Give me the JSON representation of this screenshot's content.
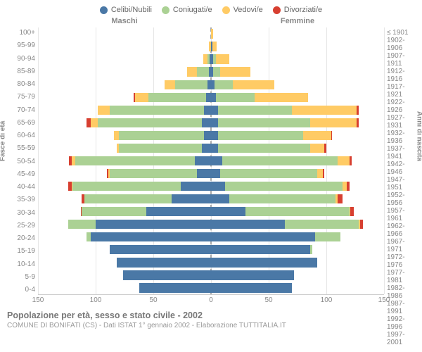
{
  "legend": [
    {
      "label": "Celibi/Nubili",
      "color": "#4a78a6"
    },
    {
      "label": "Coniugati/e",
      "color": "#abd194"
    },
    {
      "label": "Vedovi/e",
      "color": "#ffcb65"
    },
    {
      "label": "Divorziati/e",
      "color": "#d73f30"
    }
  ],
  "headers": {
    "left": "Maschi",
    "right": "Femmine"
  },
  "axis_titles": {
    "left": "Fasce di età",
    "right": "Anni di nascita"
  },
  "footer": {
    "title": "Popolazione per età, sesso e stato civile - 2002",
    "sub": "COMUNE DI BONIFATI (CS) - Dati ISTAT 1° gennaio 2002 - Elaborazione TUTTITALIA.IT"
  },
  "chart": {
    "xmax": 150,
    "xticks": [
      150,
      100,
      50,
      0,
      50,
      100,
      150
    ],
    "colors": {
      "single": "#4a78a6",
      "married": "#abd194",
      "widowed": "#ffcb65",
      "divorced": "#d73f30",
      "grid": "#e6e6e6",
      "center": "#aaaaaa"
    },
    "rows": [
      {
        "age": "100+",
        "birth": "≤ 1901",
        "m": {
          "s": 0,
          "m": 0,
          "w": 0,
          "d": 0
        },
        "f": {
          "s": 0,
          "m": 0,
          "w": 2,
          "d": 0
        }
      },
      {
        "age": "95-99",
        "birth": "1902-1906",
        "m": {
          "s": 0,
          "m": 0,
          "w": 2,
          "d": 0
        },
        "f": {
          "s": 1,
          "m": 0,
          "w": 4,
          "d": 0
        }
      },
      {
        "age": "90-94",
        "birth": "1907-1911",
        "m": {
          "s": 1,
          "m": 2,
          "w": 4,
          "d": 0
        },
        "f": {
          "s": 2,
          "m": 2,
          "w": 12,
          "d": 0
        }
      },
      {
        "age": "85-89",
        "birth": "1912-1916",
        "m": {
          "s": 2,
          "m": 10,
          "w": 9,
          "d": 0
        },
        "f": {
          "s": 2,
          "m": 6,
          "w": 26,
          "d": 0
        }
      },
      {
        "age": "80-84",
        "birth": "1917-1921",
        "m": {
          "s": 3,
          "m": 28,
          "w": 9,
          "d": 0
        },
        "f": {
          "s": 3,
          "m": 16,
          "w": 36,
          "d": 0
        }
      },
      {
        "age": "75-79",
        "birth": "1922-1926",
        "m": {
          "s": 4,
          "m": 50,
          "w": 12,
          "d": 1
        },
        "f": {
          "s": 4,
          "m": 34,
          "w": 46,
          "d": 0
        }
      },
      {
        "age": "70-74",
        "birth": "1927-1931",
        "m": {
          "s": 6,
          "m": 82,
          "w": 10,
          "d": 0
        },
        "f": {
          "s": 6,
          "m": 64,
          "w": 56,
          "d": 2
        }
      },
      {
        "age": "65-69",
        "birth": "1932-1936",
        "m": {
          "s": 8,
          "m": 90,
          "w": 6,
          "d": 4
        },
        "f": {
          "s": 6,
          "m": 80,
          "w": 40,
          "d": 2
        }
      },
      {
        "age": "60-64",
        "birth": "1937-1941",
        "m": {
          "s": 6,
          "m": 74,
          "w": 4,
          "d": 0
        },
        "f": {
          "s": 6,
          "m": 74,
          "w": 24,
          "d": 1
        }
      },
      {
        "age": "55-59",
        "birth": "1942-1946",
        "m": {
          "s": 8,
          "m": 72,
          "w": 2,
          "d": 0
        },
        "f": {
          "s": 6,
          "m": 80,
          "w": 12,
          "d": 2
        }
      },
      {
        "age": "50-54",
        "birth": "1947-1951",
        "m": {
          "s": 14,
          "m": 104,
          "w": 3,
          "d": 2
        },
        "f": {
          "s": 10,
          "m": 100,
          "w": 10,
          "d": 2
        }
      },
      {
        "age": "45-49",
        "birth": "1952-1956",
        "m": {
          "s": 12,
          "m": 76,
          "w": 1,
          "d": 1
        },
        "f": {
          "s": 8,
          "m": 84,
          "w": 5,
          "d": 1
        }
      },
      {
        "age": "40-44",
        "birth": "1957-1961",
        "m": {
          "s": 26,
          "m": 94,
          "w": 1,
          "d": 3
        },
        "f": {
          "s": 12,
          "m": 102,
          "w": 4,
          "d": 2
        }
      },
      {
        "age": "35-39",
        "birth": "1962-1966",
        "m": {
          "s": 34,
          "m": 76,
          "w": 0,
          "d": 2
        },
        "f": {
          "s": 16,
          "m": 92,
          "w": 2,
          "d": 4
        }
      },
      {
        "age": "30-34",
        "birth": "1967-1971",
        "m": {
          "s": 56,
          "m": 56,
          "w": 0,
          "d": 1
        },
        "f": {
          "s": 30,
          "m": 90,
          "w": 1,
          "d": 3
        }
      },
      {
        "age": "25-29",
        "birth": "1972-1976",
        "m": {
          "s": 100,
          "m": 24,
          "w": 0,
          "d": 0
        },
        "f": {
          "s": 64,
          "m": 64,
          "w": 1,
          "d": 3
        }
      },
      {
        "age": "20-24",
        "birth": "1977-1981",
        "m": {
          "s": 104,
          "m": 4,
          "w": 0,
          "d": 0
        },
        "f": {
          "s": 90,
          "m": 22,
          "w": 0,
          "d": 0
        }
      },
      {
        "age": "15-19",
        "birth": "1982-1986",
        "m": {
          "s": 88,
          "m": 0,
          "w": 0,
          "d": 0
        },
        "f": {
          "s": 86,
          "m": 2,
          "w": 0,
          "d": 0
        }
      },
      {
        "age": "10-14",
        "birth": "1987-1991",
        "m": {
          "s": 82,
          "m": 0,
          "w": 0,
          "d": 0
        },
        "f": {
          "s": 92,
          "m": 0,
          "w": 0,
          "d": 0
        }
      },
      {
        "age": "5-9",
        "birth": "1992-1996",
        "m": {
          "s": 76,
          "m": 0,
          "w": 0,
          "d": 0
        },
        "f": {
          "s": 72,
          "m": 0,
          "w": 0,
          "d": 0
        }
      },
      {
        "age": "0-4",
        "birth": "1997-2001",
        "m": {
          "s": 62,
          "m": 0,
          "w": 0,
          "d": 0
        },
        "f": {
          "s": 70,
          "m": 0,
          "w": 0,
          "d": 0
        }
      }
    ]
  }
}
